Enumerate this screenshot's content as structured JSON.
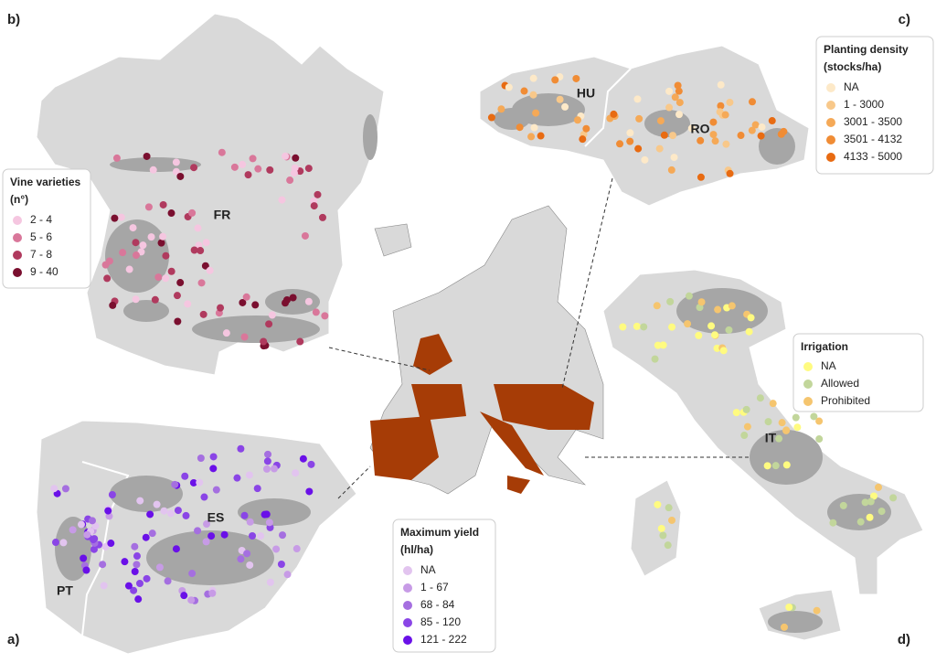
{
  "panels": [
    {
      "label": "a)",
      "regions": [
        "ES",
        "PT"
      ],
      "legend": {
        "title": "Maximum yield",
        "unit": "(hl/ha)",
        "items": [
          {
            "label": "NA",
            "color": "#e2c4ef"
          },
          {
            "label": "1 - 67",
            "color": "#c79be6"
          },
          {
            "label": "68 - 84",
            "color": "#a56fe0"
          },
          {
            "label": "85 - 120",
            "color": "#8a45e6"
          },
          {
            "label": "121 - 222",
            "color": "#6a10e8"
          }
        ]
      }
    },
    {
      "label": "b)",
      "regions": [
        "FR"
      ],
      "legend": {
        "title": "Vine varieties",
        "unit": "(n°)",
        "items": [
          {
            "label": "2 - 4",
            "color": "#f5c6e0"
          },
          {
            "label": "5 - 6",
            "color": "#d9779a"
          },
          {
            "label": "7 - 8",
            "color": "#b03a5e"
          },
          {
            "label": "9 - 40",
            "color": "#7a0f2f"
          }
        ]
      }
    },
    {
      "label": "c)",
      "regions": [
        "HU",
        "RO"
      ],
      "legend": {
        "title": "Planting density",
        "unit": "(stocks/ha)",
        "items": [
          {
            "label": "NA",
            "color": "#fde9c8"
          },
          {
            "label": "1 - 3000",
            "color": "#f8c88a"
          },
          {
            "label": "3001 - 3500",
            "color": "#f5a957"
          },
          {
            "label": "3501 - 4132",
            "color": "#f08c35"
          },
          {
            "label": "4133 - 5000",
            "color": "#e86b12"
          }
        ]
      }
    },
    {
      "label": "d)",
      "regions": [
        "IT"
      ],
      "legend": {
        "title": "Irrigation",
        "items": [
          {
            "label": "NA",
            "color": "#fffb80"
          },
          {
            "label": "Allowed",
            "color": "#c2d69b"
          },
          {
            "label": "Prohibited",
            "color": "#f5c56f"
          }
        ]
      }
    }
  ]
}
